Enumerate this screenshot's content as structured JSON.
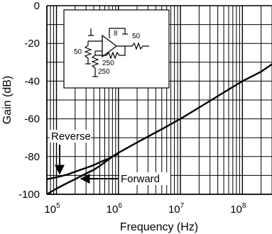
{
  "chart_data": {
    "type": "line",
    "title": "",
    "xlabel": "Frequency (Hz)",
    "ylabel": "Gain (dB)",
    "x_scale": "log",
    "xlim": [
      70000,
      300000000
    ],
    "ylim": [
      -100,
      0
    ],
    "grid": true,
    "x_tick_labels": [
      {
        "value": 100000,
        "base": "10",
        "exp": "5"
      },
      {
        "value": 1000000,
        "base": "10",
        "exp": "6"
      },
      {
        "value": 10000000,
        "base": "10",
        "exp": "7"
      },
      {
        "value": 100000000,
        "base": "10",
        "exp": "8"
      }
    ],
    "y_ticks": [
      0,
      -20,
      -40,
      -60,
      -80,
      -100
    ],
    "series": [
      {
        "name": "Reverse",
        "x": [
          70000,
          100000,
          150000,
          200000,
          300000,
          400000,
          500000,
          700000,
          1000000,
          2000000,
          5000000,
          10000000,
          20000000,
          50000000,
          100000000,
          200000000,
          300000000
        ],
        "y": [
          -92,
          -91,
          -89.5,
          -88,
          -86,
          -84.5,
          -83,
          -81,
          -78,
          -72.5,
          -65.5,
          -60,
          -54,
          -46,
          -40,
          -35,
          -31
        ]
      },
      {
        "name": "Forward",
        "x": [
          70000,
          100000,
          150000,
          200000,
          300000,
          400000,
          500000,
          600000,
          700000,
          800000,
          1000000
        ],
        "y": [
          -100,
          -97,
          -94,
          -92,
          -89,
          -87,
          -85,
          -83,
          -81.5,
          -80,
          -78.5
        ]
      }
    ],
    "annotations": [
      {
        "text": "Reverse",
        "series": "Reverse"
      },
      {
        "text": "Forward",
        "series": "Forward"
      }
    ],
    "inset_labels": [
      "8",
      "50",
      "50",
      "250",
      "250"
    ]
  }
}
